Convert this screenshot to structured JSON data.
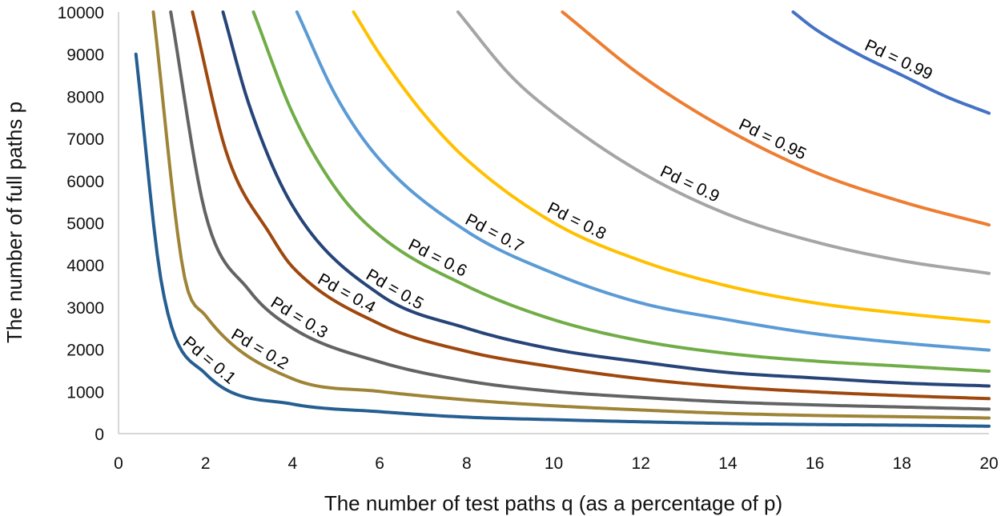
{
  "chart_data": {
    "type": "line",
    "title": "",
    "xlabel": "The number of test paths q (as a percentage of p)",
    "ylabel": "The number of full paths p",
    "xlim": [
      0,
      20
    ],
    "ylim": [
      0,
      10000
    ],
    "xticks": [
      0,
      2,
      4,
      6,
      8,
      10,
      12,
      14,
      16,
      18,
      20
    ],
    "yticks": [
      0,
      1000,
      2000,
      3000,
      4000,
      5000,
      6000,
      7000,
      8000,
      9000,
      10000
    ],
    "grid": false,
    "legend": "none (labels placed on curves)",
    "series": [
      {
        "name": "Pd = 0.1",
        "color": "#255E91",
        "x": [
          0.4,
          1,
          2,
          4,
          6,
          8,
          10,
          12,
          14,
          16,
          18,
          20
        ],
        "y": [
          9000,
          3500,
          1420,
          700,
          520,
          390,
          330,
          280,
          240,
          215,
          200,
          175
        ],
        "label_at": 1.9
      },
      {
        "name": "Pd = 0.2",
        "color": "#9E8437",
        "x": [
          0.8,
          1.5,
          2,
          4,
          6,
          8,
          10,
          12,
          14,
          16,
          18,
          20
        ],
        "y": [
          10000,
          3800,
          2800,
          1300,
          1000,
          800,
          660,
          560,
          480,
          430,
          400,
          370
        ],
        "label_at": 3.1
      },
      {
        "name": "Pd = 0.3",
        "color": "#636363",
        "x": [
          1.2,
          2,
          3,
          4,
          6,
          8,
          10,
          12,
          14,
          16,
          18,
          20
        ],
        "y": [
          10000,
          5200,
          3400,
          2500,
          1700,
          1250,
          1000,
          860,
          750,
          680,
          630,
          580
        ],
        "label_at": 4.0
      },
      {
        "name": "Pd = 0.4",
        "color": "#9E480E",
        "x": [
          1.7,
          2.5,
          3.5,
          4,
          6,
          8,
          10,
          12,
          14,
          16,
          18,
          20
        ],
        "y": [
          10000,
          6600,
          4700,
          3950,
          2600,
          1950,
          1580,
          1300,
          1110,
          990,
          900,
          830
        ],
        "label_at": 5.1
      },
      {
        "name": "Pd = 0.5",
        "color": "#264478",
        "x": [
          2.4,
          3,
          4,
          6,
          8,
          10,
          12,
          14,
          16,
          18,
          20
        ],
        "y": [
          10000,
          7800,
          5400,
          3300,
          2500,
          2000,
          1700,
          1450,
          1320,
          1200,
          1130
        ],
        "label_at": 6.2
      },
      {
        "name": "Pd = 0.6",
        "color": "#70AD47",
        "x": [
          3.1,
          4,
          5,
          6,
          8,
          10,
          12,
          14,
          16,
          18,
          20
        ],
        "y": [
          10000,
          7600,
          5800,
          4700,
          3500,
          2700,
          2200,
          1900,
          1720,
          1600,
          1480
        ],
        "label_at": 7.2
      },
      {
        "name": "Pd = 0.7",
        "color": "#5B9BD5",
        "x": [
          4.1,
          5,
          6,
          8,
          10,
          12,
          14,
          16,
          18,
          20
        ],
        "y": [
          10000,
          8000,
          6500,
          4800,
          3800,
          3100,
          2700,
          2370,
          2150,
          1980
        ],
        "label_at": 8.5
      },
      {
        "name": "Pd = 0.8",
        "color": "#FFC000",
        "x": [
          5.4,
          6,
          7,
          8,
          10,
          12,
          14,
          16,
          18,
          20
        ],
        "y": [
          10000,
          9000,
          7600,
          6500,
          5000,
          4100,
          3500,
          3100,
          2850,
          2650
        ],
        "label_at": 10.4
      },
      {
        "name": "Pd = 0.9",
        "color": "#A5A5A5",
        "x": [
          7.8,
          9,
          10,
          12,
          14,
          16,
          18,
          20
        ],
        "y": [
          10000,
          8500,
          7600,
          6200,
          5200,
          4550,
          4100,
          3800
        ],
        "label_at": 13.0
      },
      {
        "name": "Pd = 0.95",
        "color": "#ED7D31",
        "x": [
          10.2,
          12,
          14,
          16,
          18,
          20
        ],
        "y": [
          10000,
          8500,
          7200,
          6200,
          5500,
          4950
        ],
        "label_at": 14.9
      },
      {
        "name": "Pd = 0.99",
        "color": "#4472C4",
        "x": [
          15.5,
          16,
          17,
          18,
          19,
          20
        ],
        "y": [
          10000,
          9600,
          9000,
          8500,
          8000,
          7600
        ],
        "label_at": 17.8
      }
    ]
  }
}
